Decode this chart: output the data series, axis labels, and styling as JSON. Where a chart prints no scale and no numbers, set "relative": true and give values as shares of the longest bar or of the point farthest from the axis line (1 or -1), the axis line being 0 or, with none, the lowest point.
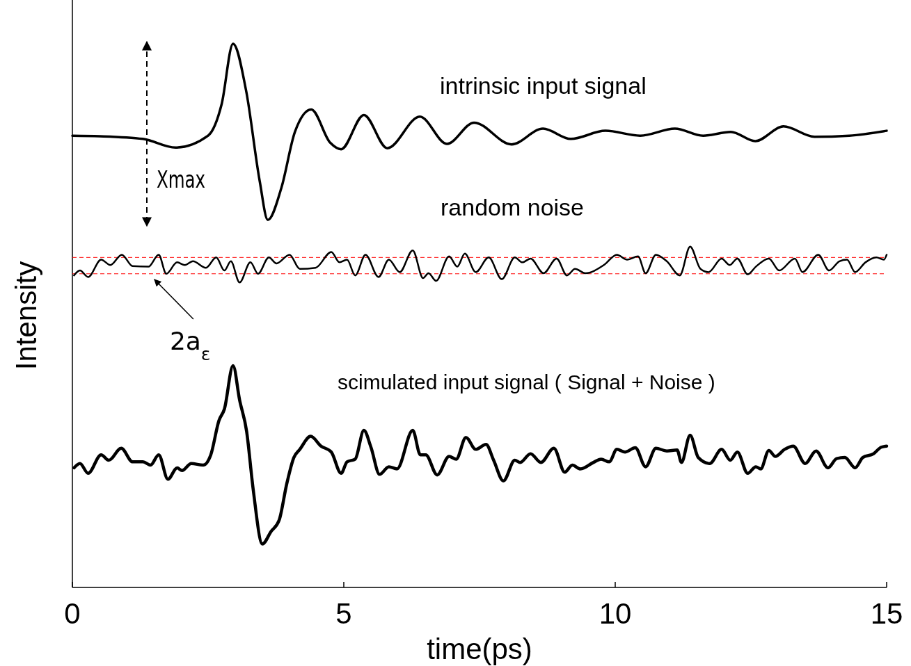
{
  "chart_data": {
    "type": "line",
    "relative": true,
    "xlabel": "time(ps)",
    "ylabel": "Intensity",
    "xlim": [
      0,
      15
    ],
    "xticks": [
      0,
      5,
      10,
      15
    ],
    "tick_labels": "x",
    "grid": false,
    "marker": "none",
    "line_style": "solid",
    "series": [
      {
        "name": "intrinsic input signal",
        "color": "#000000",
        "x": [
          0,
          0.5,
          1.3,
          1.9,
          2.5,
          2.75,
          2.96,
          3.2,
          3.45,
          3.6,
          3.85,
          4.1,
          4.4,
          4.75,
          4.95,
          5.37,
          5.8,
          6.4,
          6.9,
          7.4,
          8.09,
          8.67,
          9.18,
          9.82,
          10.46,
          11.1,
          11.62,
          12.13,
          12.58,
          13.1,
          13.67,
          14.31,
          15
        ],
        "values": [
          0.831,
          0.83,
          0.825,
          0.809,
          0.831,
          0.889,
          1.0,
          0.914,
          0.748,
          0.676,
          0.735,
          0.838,
          0.879,
          0.818,
          0.806,
          0.869,
          0.808,
          0.866,
          0.816,
          0.855,
          0.815,
          0.844,
          0.825,
          0.84,
          0.831,
          0.844,
          0.831,
          0.838,
          0.821,
          0.848,
          0.829,
          0.831,
          0.84
        ]
      },
      {
        "name": "random noise",
        "color": "#000000",
        "x": [
          0.03,
          0.14,
          0.29,
          0.53,
          0.7,
          0.91,
          1.11,
          1.4,
          1.59,
          1.73,
          1.93,
          2.07,
          2.22,
          2.46,
          2.65,
          2.8,
          2.92,
          3.08,
          3.28,
          3.42,
          3.62,
          3.76,
          4.0,
          4.19,
          4.48,
          4.77,
          4.92,
          5.06,
          5.21,
          5.4,
          5.64,
          5.83,
          6.03,
          6.27,
          6.46,
          6.56,
          6.7,
          6.94,
          7.09,
          7.23,
          7.43,
          7.67,
          7.91,
          8.15,
          8.29,
          8.44,
          8.68,
          8.92,
          9.11,
          9.26,
          9.45,
          9.79,
          10.03,
          10.22,
          10.42,
          10.56,
          10.75,
          10.95,
          11.19,
          11.38,
          11.57,
          11.72,
          11.96,
          12.11,
          12.25,
          12.44,
          12.59,
          12.83,
          13.02,
          13.31,
          13.45,
          13.74,
          13.94,
          14.13,
          14.27,
          14.42,
          14.61,
          14.81,
          14.95,
          15.0
        ],
        "values": [
          0.574,
          0.583,
          0.571,
          0.603,
          0.593,
          0.612,
          0.591,
          0.59,
          0.612,
          0.577,
          0.598,
          0.593,
          0.6,
          0.588,
          0.607,
          0.583,
          0.6,
          0.561,
          0.598,
          0.577,
          0.607,
          0.596,
          0.612,
          0.586,
          0.588,
          0.617,
          0.598,
          0.603,
          0.574,
          0.612,
          0.571,
          0.603,
          0.58,
          0.62,
          0.569,
          0.578,
          0.564,
          0.609,
          0.59,
          0.614,
          0.58,
          0.607,
          0.567,
          0.607,
          0.598,
          0.605,
          0.578,
          0.605,
          0.574,
          0.586,
          0.578,
          0.593,
          0.612,
          0.603,
          0.609,
          0.578,
          0.612,
          0.6,
          0.574,
          0.627,
          0.586,
          0.58,
          0.605,
          0.593,
          0.605,
          0.576,
          0.59,
          0.605,
          0.583,
          0.605,
          0.58,
          0.612,
          0.583,
          0.6,
          0.603,
          0.58,
          0.598,
          0.607,
          0.603,
          0.612
        ]
      },
      {
        "name": "scimulated input signal ( Signal + Noise )",
        "color": "#000000",
        "x": [
          0.03,
          0.14,
          0.29,
          0.53,
          0.67,
          0.9,
          1.11,
          1.3,
          1.44,
          1.59,
          1.76,
          1.93,
          2.02,
          2.19,
          2.41,
          2.55,
          2.7,
          2.8,
          2.96,
          3.08,
          3.21,
          3.33,
          3.5,
          3.66,
          3.81,
          3.95,
          4.08,
          4.19,
          4.39,
          4.58,
          4.77,
          4.95,
          5.06,
          5.21,
          5.37,
          5.5,
          5.66,
          5.83,
          5.98,
          6.27,
          6.41,
          6.51,
          6.72,
          6.94,
          7.07,
          7.25,
          7.43,
          7.62,
          7.76,
          7.94,
          8.15,
          8.25,
          8.44,
          8.63,
          8.87,
          9.07,
          9.21,
          9.36,
          9.6,
          9.74,
          9.89,
          10.03,
          10.18,
          10.37,
          10.56,
          10.75,
          10.95,
          11.14,
          11.22,
          11.38,
          11.53,
          11.74,
          11.96,
          12.12,
          12.25,
          12.44,
          12.59,
          12.68,
          12.83,
          12.95,
          13.12,
          13.28,
          13.5,
          13.7,
          13.92,
          14.08,
          14.23,
          14.42,
          14.56,
          14.76,
          14.9,
          15.0
        ],
        "values": [
          0.22,
          0.228,
          0.21,
          0.244,
          0.234,
          0.256,
          0.231,
          0.231,
          0.225,
          0.244,
          0.199,
          0.22,
          0.215,
          0.228,
          0.225,
          0.244,
          0.307,
          0.328,
          0.408,
          0.345,
          0.287,
          0.181,
          0.08,
          0.103,
          0.124,
          0.191,
          0.239,
          0.254,
          0.278,
          0.26,
          0.249,
          0.21,
          0.231,
          0.236,
          0.289,
          0.258,
          0.208,
          0.222,
          0.218,
          0.289,
          0.244,
          0.244,
          0.207,
          0.241,
          0.236,
          0.276,
          0.254,
          0.263,
          0.234,
          0.196,
          0.234,
          0.23,
          0.246,
          0.23,
          0.256,
          0.212,
          0.225,
          0.218,
          0.23,
          0.236,
          0.231,
          0.254,
          0.249,
          0.257,
          0.222,
          0.256,
          0.251,
          0.253,
          0.23,
          0.28,
          0.239,
          0.228,
          0.254,
          0.234,
          0.249,
          0.21,
          0.222,
          0.218,
          0.252,
          0.241,
          0.254,
          0.26,
          0.228,
          0.251,
          0.22,
          0.237,
          0.239,
          0.22,
          0.239,
          0.246,
          0.258,
          0.26
        ]
      }
    ],
    "ref_lines": [
      {
        "axis": "y",
        "value": 0.607,
        "color": "#ff0000",
        "line_style": "dashed"
      },
      {
        "axis": "y",
        "value": 0.577,
        "color": "#ff0000",
        "line_style": "dashed"
      }
    ],
    "annotations": [
      "Xmax",
      {
        "text": "2a$_{ε}$",
        "x": 1.46,
        "y": 0.573
      }
    ]
  }
}
